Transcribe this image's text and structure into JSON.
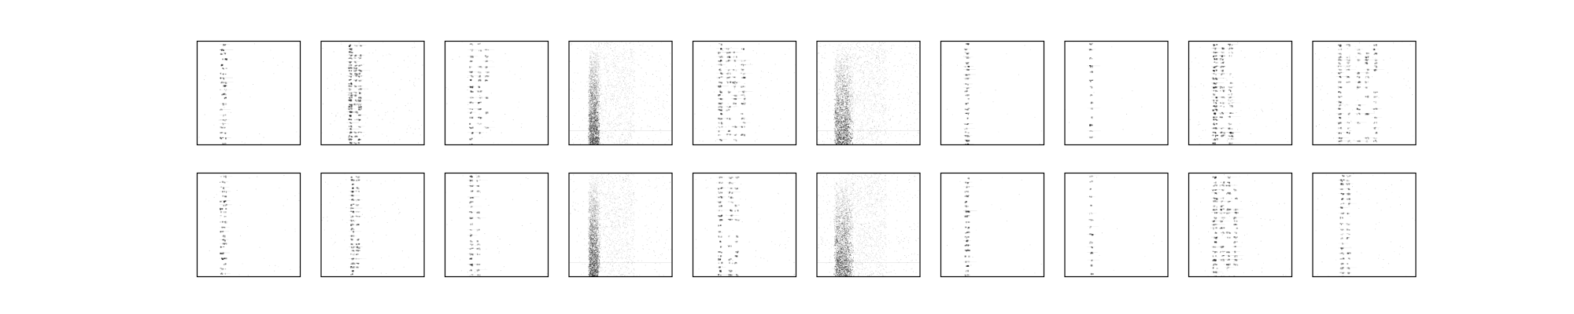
{
  "figure": {
    "background": "#ffffff",
    "frame_color": "#000000",
    "ink_color": "#000000",
    "rows": 2,
    "cols": 10
  },
  "chart_data": {
    "type": "heatmap",
    "colormap": "gray_r",
    "value_range": [
      0,
      1
    ],
    "axes_visible": false,
    "panels": [
      {
        "row": 0,
        "col": 0,
        "pattern": "sparse-column",
        "column_x": 0.25,
        "spread": 0.03,
        "row_step": 0.045,
        "intensity": 0.7,
        "speckle": 0.01
      },
      {
        "row": 0,
        "col": 1,
        "pattern": "multi-column",
        "columns": [
          0.28,
          0.33,
          0.37
        ],
        "spread": 0.015,
        "row_step": 0.03,
        "intensity": 0.65,
        "speckle": 0.03
      },
      {
        "row": 0,
        "col": 2,
        "pattern": "multi-column",
        "columns": [
          0.25,
          0.33,
          0.4
        ],
        "spread": 0.015,
        "row_step": 0.05,
        "intensity": 0.55,
        "speckle": 0.01
      },
      {
        "row": 0,
        "col": 3,
        "pattern": "dense-band",
        "band_x": 0.22,
        "band_width": 0.06,
        "intensity": 0.55,
        "density_gradient": "increasing-down",
        "speckle": 0.08,
        "faint_column_x": 0.23
      },
      {
        "row": 0,
        "col": 4,
        "pattern": "multi-column",
        "columns": [
          0.26,
          0.34,
          0.4,
          0.48
        ],
        "spread": 0.018,
        "row_step": 0.04,
        "intensity": 0.6,
        "speckle": 0.02
      },
      {
        "row": 0,
        "col": 5,
        "pattern": "dense-band",
        "band_x": 0.22,
        "band_width": 0.1,
        "intensity": 0.6,
        "density_gradient": "increasing-down",
        "speckle": 0.12
      },
      {
        "row": 0,
        "col": 6,
        "pattern": "sparse-column",
        "column_x": 0.25,
        "spread": 0.02,
        "row_step": 0.045,
        "intensity": 0.6,
        "speckle": 0.005
      },
      {
        "row": 0,
        "col": 7,
        "pattern": "sparse-column",
        "column_x": 0.25,
        "spread": 0.015,
        "row_step": 0.07,
        "intensity": 0.55,
        "speckle": 0.003
      },
      {
        "row": 0,
        "col": 8,
        "pattern": "multi-column",
        "columns": [
          0.25,
          0.32,
          0.4
        ],
        "spread": 0.02,
        "row_step": 0.035,
        "intensity": 0.7,
        "speckle": 0.02
      },
      {
        "row": 0,
        "col": 9,
        "pattern": "multi-column",
        "columns": [
          0.26,
          0.34,
          0.44,
          0.52,
          0.6
        ],
        "spread": 0.015,
        "row_step": 0.04,
        "intensity": 0.55,
        "speckle": 0.02
      },
      {
        "row": 1,
        "col": 0,
        "pattern": "sparse-column",
        "column_x": 0.25,
        "spread": 0.03,
        "row_step": 0.045,
        "intensity": 0.7,
        "speckle": 0.01
      },
      {
        "row": 1,
        "col": 1,
        "pattern": "multi-column",
        "columns": [
          0.3,
          0.35
        ],
        "spread": 0.015,
        "row_step": 0.035,
        "intensity": 0.6,
        "speckle": 0.02
      },
      {
        "row": 1,
        "col": 2,
        "pattern": "multi-column",
        "columns": [
          0.25,
          0.32
        ],
        "spread": 0.015,
        "row_step": 0.045,
        "intensity": 0.55,
        "speckle": 0.01
      },
      {
        "row": 1,
        "col": 3,
        "pattern": "dense-band",
        "band_x": 0.22,
        "band_width": 0.06,
        "intensity": 0.55,
        "density_gradient": "increasing-down",
        "speckle": 0.06
      },
      {
        "row": 1,
        "col": 4,
        "pattern": "multi-column",
        "columns": [
          0.26,
          0.36,
          0.42
        ],
        "spread": 0.018,
        "row_step": 0.045,
        "intensity": 0.6,
        "speckle": 0.015
      },
      {
        "row": 1,
        "col": 5,
        "pattern": "dense-band",
        "band_x": 0.22,
        "band_width": 0.1,
        "intensity": 0.6,
        "density_gradient": "increasing-down",
        "speckle": 0.1
      },
      {
        "row": 1,
        "col": 6,
        "pattern": "sparse-column",
        "column_x": 0.25,
        "spread": 0.02,
        "row_step": 0.045,
        "intensity": 0.6,
        "speckle": 0.005
      },
      {
        "row": 1,
        "col": 7,
        "pattern": "sparse-column",
        "column_x": 0.25,
        "spread": 0.015,
        "row_step": 0.065,
        "intensity": 0.55,
        "speckle": 0.003
      },
      {
        "row": 1,
        "col": 8,
        "pattern": "multi-column",
        "columns": [
          0.25,
          0.32,
          0.38,
          0.45
        ],
        "spread": 0.02,
        "row_step": 0.04,
        "intensity": 0.65,
        "speckle": 0.02
      },
      {
        "row": 1,
        "col": 9,
        "pattern": "multi-column",
        "columns": [
          0.28,
          0.34
        ],
        "spread": 0.015,
        "row_step": 0.045,
        "intensity": 0.55,
        "speckle": 0.015
      }
    ]
  }
}
